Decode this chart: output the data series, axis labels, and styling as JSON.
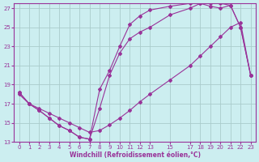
{
  "bg_color": "#cceef0",
  "grid_color": "#aacccc",
  "line_color": "#993399",
  "marker": "D",
  "xlabel": "Windchill (Refroidissement éolien,°C)",
  "xlabel_color": "#993399",
  "xlim": [
    -0.5,
    23.5
  ],
  "ylim": [
    13,
    27.5
  ],
  "xticks": [
    0,
    1,
    2,
    3,
    4,
    5,
    6,
    7,
    8,
    9,
    10,
    11,
    12,
    13,
    15,
    17,
    18,
    19,
    20,
    21,
    22,
    23
  ],
  "yticks": [
    13,
    15,
    17,
    19,
    21,
    23,
    25,
    27
  ],
  "curve1_x": [
    0,
    1,
    2,
    3,
    4,
    5,
    6,
    7,
    8,
    9,
    10,
    11,
    12,
    13,
    15,
    17,
    18,
    19,
    20,
    21,
    22,
    23
  ],
  "curve1_y": [
    18.0,
    17.0,
    16.5,
    16.0,
    15.5,
    15.0,
    14.5,
    14.0,
    14.2,
    14.8,
    15.5,
    16.3,
    17.2,
    18.0,
    19.5,
    21.0,
    22.0,
    23.0,
    24.0,
    25.0,
    25.5,
    20.0
  ],
  "curve2_x": [
    0,
    1,
    2,
    3,
    4,
    5,
    6,
    7,
    8,
    9,
    10,
    11,
    12,
    13,
    15,
    17,
    18,
    19,
    20,
    21,
    22,
    23
  ],
  "curve2_y": [
    18.2,
    17.0,
    16.3,
    15.5,
    14.7,
    14.2,
    13.5,
    13.3,
    16.5,
    20.0,
    22.3,
    23.8,
    24.5,
    25.0,
    26.3,
    27.0,
    27.5,
    27.5,
    27.5,
    27.3,
    25.0,
    20.0
  ],
  "curve3_x": [
    0,
    1,
    2,
    3,
    4,
    5,
    6,
    7,
    8,
    9,
    10,
    11,
    12,
    13,
    15,
    17,
    18,
    19,
    20,
    21,
    22,
    23
  ],
  "curve3_y": [
    18.2,
    17.0,
    16.3,
    15.5,
    14.7,
    14.2,
    13.5,
    13.3,
    18.5,
    20.5,
    23.0,
    25.3,
    26.2,
    26.8,
    27.2,
    27.5,
    27.5,
    27.2,
    27.0,
    27.3,
    25.0,
    20.0
  ]
}
